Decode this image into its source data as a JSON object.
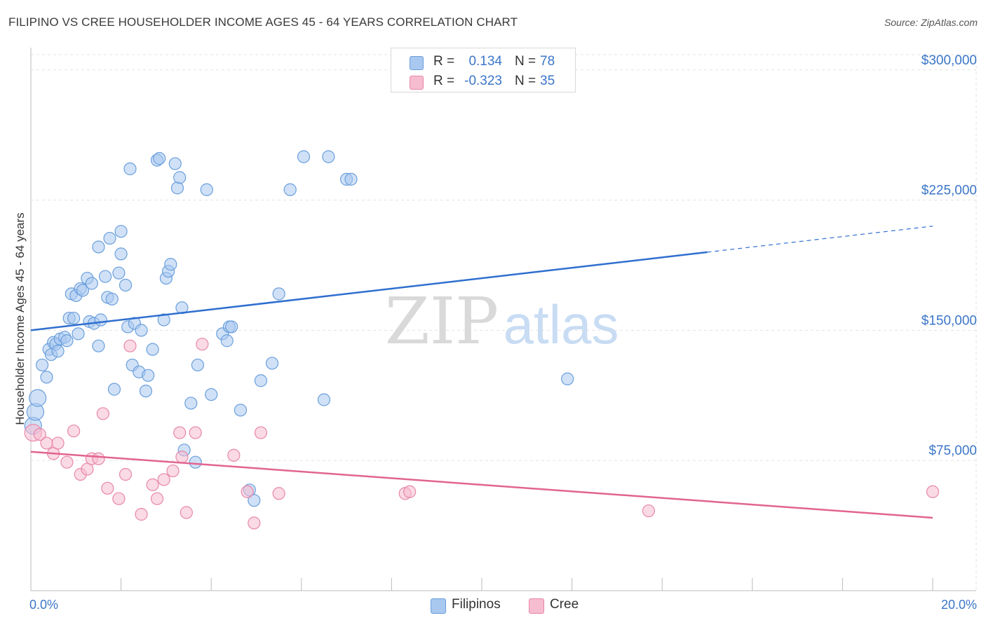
{
  "title": "FILIPINO VS CREE HOUSEHOLDER INCOME AGES 45 - 64 YEARS CORRELATION CHART",
  "source": "Source: ZipAtlas.com",
  "watermark": {
    "zip": "ZIP",
    "atlas": "atlas"
  },
  "colors": {
    "blue_fill": "#a9c8f0",
    "blue_stroke": "#6a9fdc",
    "blue_line": "#2f6fcf",
    "pink_fill": "#f6bcd0",
    "pink_stroke": "#e887a8",
    "pink_line": "#e2648f",
    "accent_text": "#3b76c8",
    "grid": "#e3e3e3"
  },
  "legend_top": [
    {
      "r_label": "R =",
      "r_value": "0.134",
      "n_label": "N =",
      "n_value": "78",
      "color": "#a9c8f0",
      "stroke": "#6a9fdc"
    },
    {
      "r_label": "R =",
      "r_value": "-0.323",
      "n_label": "N =",
      "n_value": "35",
      "color": "#f6bcd0",
      "stroke": "#e887a8"
    }
  ],
  "legend_bottom": [
    {
      "label": "Filipinos",
      "color": "#a9c8f0",
      "stroke": "#6a9fdc"
    },
    {
      "label": "Cree",
      "color": "#f6bcd0",
      "stroke": "#e887a8"
    }
  ],
  "chart_data": {
    "type": "scatter",
    "title": "FILIPINO VS CREE HOUSEHOLDER INCOME AGES 45 - 64 YEARS CORRELATION CHART",
    "xlabel": "",
    "ylabel": "Householder Income Ages 45 - 64 years",
    "xlim": [
      0,
      20
    ],
    "ylim": [
      0,
      310000
    ],
    "x_tick_labels": [
      "0.0%",
      "20.0%"
    ],
    "y_ticks": [
      75000,
      150000,
      225000,
      300000
    ],
    "y_tick_labels": [
      "$75,000",
      "$150,000",
      "$225,000",
      "$300,000"
    ],
    "grid": true,
    "legend_placement": "top-center",
    "series": [
      {
        "name": "Filipinos",
        "r": 0.134,
        "n": 78,
        "trend": {
          "x0": 0,
          "y0": 150000,
          "x1": 15,
          "y1": 195000,
          "dashed_to_x": 20,
          "dashed_to_y": 210000
        },
        "points": [
          [
            0.05,
            95000
          ],
          [
            0.1,
            103000
          ],
          [
            0.15,
            111000
          ],
          [
            0.25,
            130000
          ],
          [
            0.35,
            123000
          ],
          [
            0.4,
            139000
          ],
          [
            0.45,
            136000
          ],
          [
            0.5,
            143000
          ],
          [
            0.55,
            142000
          ],
          [
            0.6,
            138000
          ],
          [
            0.65,
            145000
          ],
          [
            0.75,
            146000
          ],
          [
            0.8,
            144000
          ],
          [
            0.85,
            157000
          ],
          [
            0.9,
            171000
          ],
          [
            0.95,
            157000
          ],
          [
            1.0,
            170000
          ],
          [
            1.05,
            148000
          ],
          [
            1.1,
            174000
          ],
          [
            1.15,
            173000
          ],
          [
            1.25,
            180000
          ],
          [
            1.3,
            155000
          ],
          [
            1.35,
            177000
          ],
          [
            1.4,
            154000
          ],
          [
            1.5,
            141000
          ],
          [
            1.5,
            198000
          ],
          [
            1.55,
            156000
          ],
          [
            1.65,
            181000
          ],
          [
            1.7,
            169000
          ],
          [
            1.75,
            203000
          ],
          [
            1.8,
            168000
          ],
          [
            1.85,
            116000
          ],
          [
            1.95,
            183000
          ],
          [
            2.0,
            194000
          ],
          [
            2.0,
            207000
          ],
          [
            2.1,
            176000
          ],
          [
            2.15,
            152000
          ],
          [
            2.2,
            243000
          ],
          [
            2.25,
            130000
          ],
          [
            2.3,
            154000
          ],
          [
            2.4,
            126000
          ],
          [
            2.45,
            150000
          ],
          [
            2.55,
            115000
          ],
          [
            2.6,
            124000
          ],
          [
            2.7,
            139000
          ],
          [
            2.8,
            248000
          ],
          [
            2.85,
            249000
          ],
          [
            2.95,
            156000
          ],
          [
            3.0,
            180000
          ],
          [
            3.05,
            184000
          ],
          [
            3.1,
            188000
          ],
          [
            3.2,
            246000
          ],
          [
            3.25,
            232000
          ],
          [
            3.3,
            238000
          ],
          [
            3.35,
            163000
          ],
          [
            3.4,
            81000
          ],
          [
            3.55,
            108000
          ],
          [
            3.65,
            74000
          ],
          [
            3.7,
            130000
          ],
          [
            3.9,
            231000
          ],
          [
            4.0,
            113000
          ],
          [
            4.25,
            148000
          ],
          [
            4.35,
            144000
          ],
          [
            4.4,
            152000
          ],
          [
            4.45,
            152000
          ],
          [
            4.65,
            104000
          ],
          [
            4.85,
            58000
          ],
          [
            4.95,
            52000
          ],
          [
            5.1,
            121000
          ],
          [
            5.35,
            131000
          ],
          [
            5.5,
            171000
          ],
          [
            5.75,
            231000
          ],
          [
            6.05,
            250000
          ],
          [
            6.5,
            110000
          ],
          [
            6.6,
            250000
          ],
          [
            7.0,
            237000
          ],
          [
            7.1,
            237000
          ],
          [
            11.9,
            122000
          ]
        ]
      },
      {
        "name": "Cree",
        "r": -0.323,
        "n": 35,
        "trend": {
          "x0": 0,
          "y0": 80000,
          "x1": 20,
          "y1": 42000
        },
        "points": [
          [
            0.05,
            91000
          ],
          [
            0.2,
            90000
          ],
          [
            0.35,
            85000
          ],
          [
            0.5,
            79000
          ],
          [
            0.6,
            85000
          ],
          [
            0.8,
            74000
          ],
          [
            0.95,
            92000
          ],
          [
            1.1,
            67000
          ],
          [
            1.25,
            70000
          ],
          [
            1.35,
            76000
          ],
          [
            1.5,
            76000
          ],
          [
            1.6,
            102000
          ],
          [
            1.7,
            59000
          ],
          [
            1.95,
            53000
          ],
          [
            2.1,
            67000
          ],
          [
            2.2,
            141000
          ],
          [
            2.45,
            44000
          ],
          [
            2.7,
            61000
          ],
          [
            2.8,
            53000
          ],
          [
            2.95,
            64000
          ],
          [
            3.15,
            69000
          ],
          [
            3.3,
            91000
          ],
          [
            3.35,
            77000
          ],
          [
            3.45,
            45000
          ],
          [
            3.65,
            91000
          ],
          [
            3.8,
            142000
          ],
          [
            4.5,
            78000
          ],
          [
            4.8,
            57000
          ],
          [
            4.95,
            39000
          ],
          [
            5.1,
            91000
          ],
          [
            5.5,
            56000
          ],
          [
            8.3,
            56000
          ],
          [
            8.4,
            57000
          ],
          [
            13.7,
            46000
          ],
          [
            20.0,
            57000
          ]
        ]
      }
    ]
  }
}
